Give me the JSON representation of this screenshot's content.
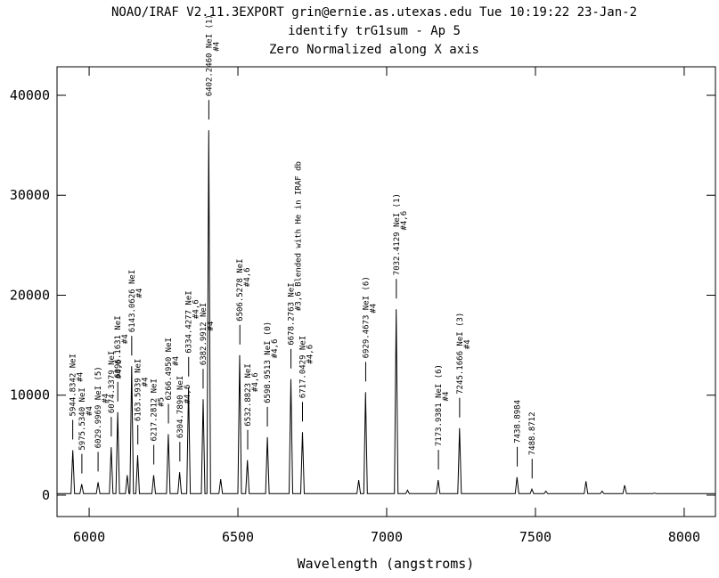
{
  "chart_data": {
    "type": "line",
    "title": "NOAO/IRAF V2.11.3EXPORT grin@ernie.as.utexas.edu Tue 10:19:22 23-Jan-2",
    "subtitle": "identify trG1sum - Ap 5",
    "subtitle2": "Zero Normalized along X axis",
    "xlabel": "Wavelength (angstroms)",
    "color": "#000000",
    "xlim": [
      5892,
      8105
    ],
    "ylim": [
      -2140,
      42850
    ],
    "xticks": [
      6000,
      6500,
      7000,
      7500,
      8000
    ],
    "yticks": [
      0,
      10000,
      20000,
      30000,
      40000
    ],
    "x": [
      5892,
      5939,
      5945,
      5951,
      5969,
      5975,
      5981,
      6024,
      6030,
      6036,
      6068,
      6074,
      6080,
      6090,
      6096,
      6102,
      6122,
      6128,
      6134,
      6137,
      6143,
      6149,
      6157,
      6163,
      6169,
      6211,
      6217,
      6223,
      6260,
      6266,
      6272,
      6298,
      6304,
      6310,
      6328,
      6334,
      6340,
      6377,
      6383,
      6389,
      6396,
      6402,
      6408,
      6436,
      6442,
      6448,
      6500,
      6506,
      6512,
      6526,
      6532,
      6538,
      6593,
      6599,
      6605,
      6672,
      6678,
      6684,
      6711,
      6717,
      6723,
      6900,
      6906,
      6912,
      6923,
      6929,
      6935,
      7026,
      7032,
      7038,
      7064,
      7070,
      7076,
      7167,
      7173,
      7179,
      7239,
      7245,
      7251,
      7432,
      7438,
      7444,
      7482,
      7488,
      7494,
      7529,
      7535,
      7541,
      7664,
      7670,
      7676,
      7718,
      7724,
      7730,
      7794,
      7800,
      7806,
      7894,
      7900,
      7906,
      8105
    ],
    "values": [
      150,
      150,
      4500,
      150,
      150,
      1100,
      150,
      150,
      1300,
      150,
      150,
      4800,
      150,
      150,
      8300,
      150,
      150,
      2000,
      150,
      150,
      12900,
      150,
      150,
      4000,
      150,
      150,
      2000,
      150,
      150,
      6100,
      150,
      150,
      2300,
      150,
      150,
      10800,
      150,
      150,
      9600,
      150,
      150,
      36500,
      150,
      150,
      1600,
      150,
      150,
      14000,
      150,
      150,
      3500,
      150,
      150,
      5800,
      150,
      150,
      11600,
      150,
      150,
      6300,
      150,
      150,
      1500,
      150,
      150,
      10300,
      150,
      150,
      18600,
      150,
      150,
      500,
      150,
      150,
      1500,
      150,
      150,
      6700,
      150,
      150,
      1800,
      150,
      150,
      600,
      150,
      150,
      400,
      150,
      150,
      1400,
      150,
      150,
      400,
      150,
      150,
      1000,
      150,
      150,
      200,
      150,
      150
    ],
    "annotations": [
      {
        "x": 5944.8342,
        "label": "5944.8342 NeI",
        "note": "#4"
      },
      {
        "x": 5975.534,
        "label": "5975.5340 NeI",
        "note": "#4"
      },
      {
        "x": 6029.9969,
        "label": "6029.9969 NeI (5)",
        "note": "#4"
      },
      {
        "x": 6074.3379,
        "label": "6074.3379 NeI",
        "note": "#4,6"
      },
      {
        "x": 6096.1631,
        "label": "6096.1631 NeI",
        "note": "#4"
      },
      {
        "x": 6143.0626,
        "label": "6143.0626 NeI",
        "note": "#4"
      },
      {
        "x": 6163.5939,
        "label": "6163.5939 NeI",
        "note": "#4"
      },
      {
        "x": 6217.2812,
        "label": "6217.2812 NeI",
        "note": "#5"
      },
      {
        "x": 6266.495,
        "label": "6266.4950 NeI",
        "note": "#4"
      },
      {
        "x": 6304.789,
        "label": "6304.7890 NeI",
        "note": "#4,6"
      },
      {
        "x": 6334.4277,
        "label": "6334.4277 NeI",
        "note": "#4,6"
      },
      {
        "x": 6382.9912,
        "label": "6382.9912 NeI",
        "note": "#4"
      },
      {
        "x": 6402.246,
        "label": "6402.2460 NeI (1)",
        "note": "#4"
      },
      {
        "x": 6506.5278,
        "label": "6506.5278 NeI",
        "note": "#4,6"
      },
      {
        "x": 6532.8823,
        "label": "6532.8823 NeI",
        "note": "#4,6"
      },
      {
        "x": 6598.9513,
        "label": "6598.9513 NeI (0)",
        "note": "#4,6"
      },
      {
        "x": 6678.2763,
        "label": "6678.2763 NeI",
        "note": "#3,6 Blended with He in IRAF db"
      },
      {
        "x": 6717.0429,
        "label": "6717.0429 NeI",
        "note": "#4,6"
      },
      {
        "x": 6929.4673,
        "label": "6929.4673 NeI (6)",
        "note": "#4"
      },
      {
        "x": 7032.4129,
        "label": "7032.4129 NeI (1)",
        "note": "#4,6"
      },
      {
        "x": 7173.9381,
        "label": "7173.9381 NeI (6)",
        "note": "#4"
      },
      {
        "x": 7245.1666,
        "label": "7245.1666 NeI (3)",
        "note": "#4"
      },
      {
        "x": 7438.8984,
        "label": "7438.8984"
      },
      {
        "x": 7488.8712,
        "label": "7488.8712"
      }
    ]
  }
}
